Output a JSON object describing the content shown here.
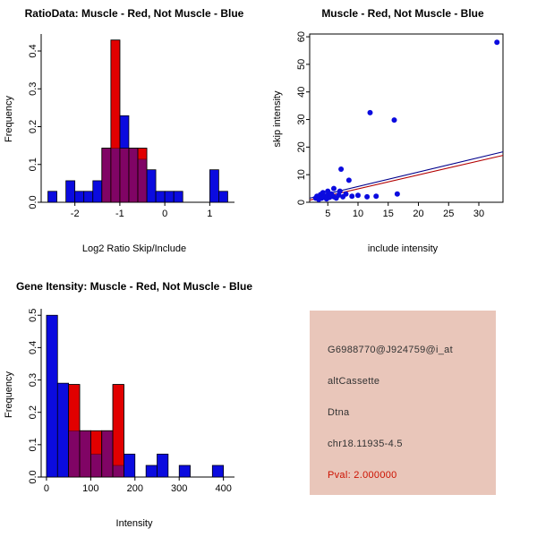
{
  "window": {
    "bg": "#ffffff"
  },
  "colors": {
    "red": "#e10000",
    "blue": "#0b0bdf",
    "line_red": "#b30000",
    "line_dark": "#00008b",
    "axis": "#000000"
  },
  "panels": {
    "ratio_hist": {
      "title": "RatioData: Muscle - Red, Not Muscle - Blue",
      "xlabel": "Log2 Ratio Skip/Include",
      "ylabel": "Frequency"
    },
    "scatter": {
      "title": "Muscle - Red, Not Muscle - Blue",
      "xlabel": "include intensity",
      "ylabel": "skip intensity"
    },
    "gene_hist": {
      "title": "Gene Itensity: Muscle - Red, Not Muscle - Blue",
      "xlabel": "Intensity",
      "ylabel": "Frequency"
    },
    "info_box": {
      "bg": "#e9c6ba",
      "text_color": "#333333",
      "highlight_color": "#cc1100",
      "lines": [
        {
          "text": "G6988770@J924759@i_at",
          "style": "normal"
        },
        {
          "text": "altCassette",
          "style": "normal"
        },
        {
          "text": "Dtna",
          "style": "normal"
        },
        {
          "text": "chr18.11935-4.5",
          "style": "normal"
        },
        {
          "text": "Pval: 2.000000",
          "style": "highlight"
        }
      ]
    }
  },
  "chart_data": [
    {
      "id": "ratio_hist",
      "type": "bar",
      "title": "RatioData: Muscle - Red, Not Muscle - Blue",
      "xlabel": "Log2 Ratio Skip/Include",
      "ylabel": "Frequency",
      "xlim": [
        -2.75,
        1.55
      ],
      "ylim": [
        0,
        0.445
      ],
      "xticks": [
        -2,
        -1,
        0,
        1
      ],
      "xtick_labels": [
        "-2",
        "-1",
        "0",
        "1"
      ],
      "yticks": [
        0,
        0.1,
        0.2,
        0.3,
        0.4
      ],
      "ytick_labels": [
        "0.0",
        "0.1",
        "0.2",
        "0.3",
        "0.4"
      ],
      "bin_width": 0.2,
      "grid": false,
      "series": [
        {
          "name": "Not Muscle (blue)",
          "color": "blue",
          "bins": [
            [
              -2.6,
              0.029
            ],
            [
              -2.2,
              0.057
            ],
            [
              -2.0,
              0.029
            ],
            [
              -1.8,
              0.029
            ],
            [
              -1.6,
              0.057
            ],
            [
              -1.4,
              0.143
            ],
            [
              -1.2,
              0.143
            ],
            [
              -1.0,
              0.229
            ],
            [
              -0.8,
              0.143
            ],
            [
              -0.6,
              0.114
            ],
            [
              -0.4,
              0.086
            ],
            [
              -0.2,
              0.029
            ],
            [
              0.0,
              0.029
            ],
            [
              0.2,
              0.029
            ],
            [
              1.0,
              0.086
            ],
            [
              1.2,
              0.029
            ]
          ]
        },
        {
          "name": "Muscle (red)",
          "color": "red",
          "bins": [
            [
              -1.4,
              0.143
            ],
            [
              -1.2,
              0.429
            ],
            [
              -1.0,
              0.143
            ],
            [
              -0.8,
              0.143
            ],
            [
              -0.6,
              0.143
            ]
          ]
        }
      ]
    },
    {
      "id": "scatter",
      "type": "scatter",
      "title": "Muscle - Red, Not Muscle - Blue",
      "xlabel": "include intensity",
      "ylabel": "skip intensity",
      "xlim": [
        2,
        34
      ],
      "ylim": [
        0,
        61
      ],
      "xticks": [
        5,
        10,
        15,
        20,
        25,
        30
      ],
      "xtick_labels": [
        "5",
        "10",
        "15",
        "20",
        "25",
        "30"
      ],
      "yticks": [
        0,
        10,
        20,
        30,
        40,
        50,
        60
      ],
      "ytick_labels": [
        "0",
        "10",
        "20",
        "30",
        "40",
        "50",
        "60"
      ],
      "grid": false,
      "points": [
        [
          3,
          1.5
        ],
        [
          3.2,
          2.2
        ],
        [
          3.5,
          1
        ],
        [
          3.8,
          2.8
        ],
        [
          4,
          1.5
        ],
        [
          4.2,
          3.5
        ],
        [
          4.5,
          2
        ],
        [
          4.8,
          1.2
        ],
        [
          5,
          2.5
        ],
        [
          5,
          4
        ],
        [
          5.3,
          1.8
        ],
        [
          5.6,
          3
        ],
        [
          6,
          2
        ],
        [
          6,
          5
        ],
        [
          6.4,
          1.5
        ],
        [
          6.8,
          2.6
        ],
        [
          7,
          4
        ],
        [
          7.2,
          12
        ],
        [
          7.5,
          2
        ],
        [
          8,
          3
        ],
        [
          8.5,
          8
        ],
        [
          9,
          2.2
        ],
        [
          10,
          2.5
        ],
        [
          11.5,
          2
        ],
        [
          12,
          32.5
        ],
        [
          13,
          2.2
        ],
        [
          16,
          29.8
        ],
        [
          16.5,
          3
        ],
        [
          33,
          58
        ]
      ],
      "lines": [
        {
          "name": "muscle-fit",
          "color": "line_red",
          "x": [
            2,
            34
          ],
          "y": [
            0.8,
            17.0
          ]
        },
        {
          "name": "not-muscle-fit",
          "color": "line_dark",
          "x": [
            2,
            34
          ],
          "y": [
            1.5,
            18.3
          ]
        }
      ]
    },
    {
      "id": "gene_hist",
      "type": "bar",
      "title": "Gene Itensity: Muscle - Red, Not Muscle - Blue",
      "xlabel": "Intensity",
      "ylabel": "Frequency",
      "xlim": [
        -12,
        425
      ],
      "ylim": [
        0,
        0.52
      ],
      "xticks": [
        0,
        100,
        200,
        300,
        400
      ],
      "xtick_labels": [
        "0",
        "100",
        "200",
        "300",
        "400"
      ],
      "yticks": [
        0,
        0.1,
        0.2,
        0.3,
        0.4,
        0.5
      ],
      "ytick_labels": [
        "0.0",
        "0.1",
        "0.2",
        "0.3",
        "0.4",
        "0.5"
      ],
      "bin_width": 25,
      "grid": false,
      "series": [
        {
          "name": "Not Muscle (blue)",
          "color": "blue",
          "bins": [
            [
              0,
              0.5
            ],
            [
              25,
              0.29
            ],
            [
              50,
              0.143
            ],
            [
              75,
              0.143
            ],
            [
              100,
              0.071
            ],
            [
              125,
              0.143
            ],
            [
              150,
              0.036
            ],
            [
              175,
              0.071
            ],
            [
              225,
              0.036
            ],
            [
              250,
              0.071
            ],
            [
              300,
              0.036
            ],
            [
              375,
              0.036
            ]
          ]
        },
        {
          "name": "Muscle (red)",
          "color": "red",
          "bins": [
            [
              50,
              0.286
            ],
            [
              75,
              0.143
            ],
            [
              100,
              0.143
            ],
            [
              125,
              0.143
            ],
            [
              150,
              0.286
            ]
          ]
        }
      ]
    }
  ]
}
